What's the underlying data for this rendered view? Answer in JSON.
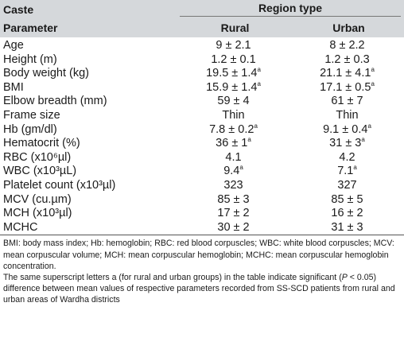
{
  "header": {
    "caste_label": "Caste",
    "region_type_label": "Region type",
    "parameter_label": "Parameter",
    "rural_label": "Rural",
    "urban_label": "Urban"
  },
  "rows": [
    {
      "param": "Age",
      "rural": "9 ± 2.1",
      "rural_sup": "",
      "urban": "8 ± 2.2",
      "urban_sup": ""
    },
    {
      "param": "Height (m)",
      "rural": "1.2 ± 0.1",
      "rural_sup": "",
      "urban": "1.2 ± 0.3",
      "urban_sup": ""
    },
    {
      "param": "Body weight (kg)",
      "rural": "19.5 ± 1.4",
      "rural_sup": "a",
      "urban": "21.1 ± 4.1",
      "urban_sup": "a"
    },
    {
      "param": "BMI",
      "rural": "15.9 ± 1.4",
      "rural_sup": "a",
      "urban": "17.1 ± 0.5",
      "urban_sup": "a"
    },
    {
      "param": "Elbow breadth (mm)",
      "rural": "59 ± 4",
      "rural_sup": "",
      "urban": "61 ± 7",
      "urban_sup": ""
    },
    {
      "param": "Frame size",
      "rural": "Thin",
      "rural_sup": "",
      "urban": "Thin",
      "urban_sup": ""
    },
    {
      "param": "Hb (gm/dl)",
      "rural": "7.8 ± 0.2",
      "rural_sup": "a",
      "urban": "9.1 ± 0.4",
      "urban_sup": "a"
    },
    {
      "param": "Hematocrit (%)",
      "rural": "36 ± 1",
      "rural_sup": "a",
      "urban": "31 ± 3",
      "urban_sup": "a"
    },
    {
      "param": "RBC (x10⁶µl)",
      "rural": "4.1",
      "rural_sup": "",
      "urban": "4.2",
      "urban_sup": ""
    },
    {
      "param": "WBC (x10³µL)",
      "rural": "9.4",
      "rural_sup": "a",
      "urban": "7.1",
      "urban_sup": "a"
    },
    {
      "param": "Platelet count (x10³µl)",
      "rural": "323",
      "rural_sup": "",
      "urban": "327",
      "urban_sup": ""
    },
    {
      "param": "MCV (cu.µm)",
      "rural": "85 ± 3",
      "rural_sup": "",
      "urban": "85 ± 5",
      "urban_sup": ""
    },
    {
      "param": "MCH (x10³µl)",
      "rural": "17 ± 2",
      "rural_sup": "",
      "urban": "16 ± 2",
      "urban_sup": ""
    },
    {
      "param": "MCHC",
      "rural": "30 ± 2",
      "rural_sup": "",
      "urban": "31 ± 3",
      "urban_sup": ""
    }
  ],
  "footnote": {
    "abbreviations": "BMI: body mass index; Hb: hemoglobin; RBC: red blood corpuscles; WBC: white blood corpuscles; MCV: mean corpuscular volume; MCH: mean corpuscular hemoglobin; MCHC: mean corpuscular hemoglobin concentration.",
    "significance_before": "The same superscript letters a (for rural and urban groups) in the table indicate significant (",
    "significance_p": "P",
    "significance_after": " < 0.05) difference between mean values of respective parameters recorded from SS-SCD patients from rural and urban areas of Wardha districts"
  }
}
